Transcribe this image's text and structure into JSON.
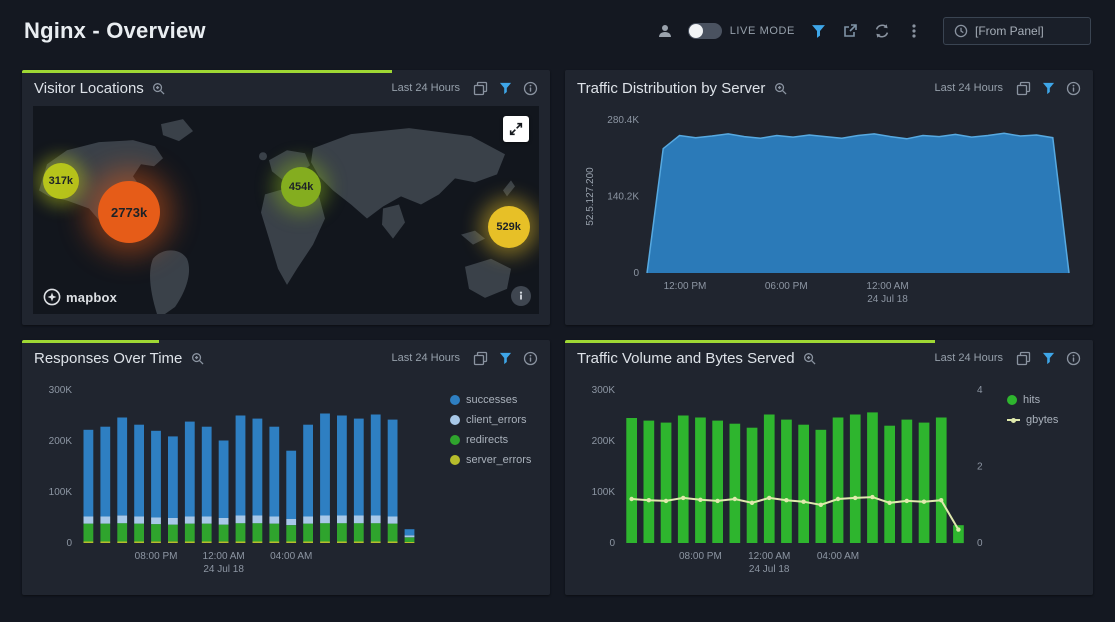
{
  "header": {
    "title": "Nginx - Overview",
    "live_mode": "LIVE MODE",
    "from_panel_value": "[From Panel]"
  },
  "panels": {
    "visitor_locations": {
      "title": "Visitor Locations",
      "time_range": "Last 24 Hours",
      "progress": 70,
      "mapbox_label": "mapbox",
      "bubbles": [
        {
          "label": "317k",
          "color": "#b6c41b",
          "x": 5.5,
          "y": 36,
          "size": 36
        },
        {
          "label": "2773k",
          "color": "#e65c18",
          "x": 19,
          "y": 51,
          "size": 62
        },
        {
          "label": "454k",
          "color": "#84ad1f",
          "x": 53,
          "y": 39,
          "size": 40
        },
        {
          "label": "529k",
          "color": "#e7c027",
          "x": 94,
          "y": 58,
          "size": 42
        }
      ]
    },
    "traffic_distribution": {
      "title": "Traffic Distribution by Server",
      "time_range": "Last 24 Hours",
      "progress": 0
    },
    "responses_over_time": {
      "title": "Responses Over Time",
      "time_range": "Last 24 Hours",
      "progress": 26
    },
    "traffic_volume": {
      "title": "Traffic Volume and Bytes Served",
      "time_range": "Last 24 Hours",
      "progress": 70
    }
  },
  "chart_data": [
    {
      "id": "traffic_distribution",
      "type": "area",
      "title": "Traffic Distribution by Server",
      "ylabel": "52.5.127.200",
      "color": "#2b7ab8",
      "stroke": "#57a9e0",
      "ylim": [
        0,
        280400
      ],
      "y_ticks": [
        {
          "v": 0,
          "label": "0"
        },
        {
          "v": 140200,
          "label": "140.2K"
        },
        {
          "v": 280400,
          "label": "280.4K"
        }
      ],
      "x_ticks": [
        {
          "f": 0.09,
          "label": "12:00 PM"
        },
        {
          "f": 0.33,
          "label": "06:00 PM"
        },
        {
          "f": 0.57,
          "label": "12:00 AM",
          "sub": "24 Jul 18"
        }
      ],
      "values": [
        0,
        228000,
        252000,
        248000,
        251000,
        255000,
        250000,
        247000,
        252000,
        249000,
        253000,
        250000,
        247000,
        252000,
        255000,
        250000,
        246000,
        252000,
        250000,
        254000,
        249000,
        252000,
        256000,
        251000,
        253000,
        248000,
        0
      ]
    },
    {
      "id": "responses_over_time",
      "type": "stacked_bar",
      "title": "Responses Over Time",
      "ylim": [
        0,
        300000
      ],
      "y_ticks": [
        {
          "v": 0,
          "label": "0"
        },
        {
          "v": 100000,
          "label": "100K"
        },
        {
          "v": 200000,
          "label": "200K"
        },
        {
          "v": 300000,
          "label": "300K"
        }
      ],
      "x_ticks": [
        {
          "i": 4,
          "label": "08:00 PM"
        },
        {
          "i": 8,
          "label": "12:00 AM",
          "sub": "24 Jul 18"
        },
        {
          "i": 12,
          "label": "04:00 AM"
        }
      ],
      "stack": [
        {
          "name": "server_errors",
          "color": "#b7bd2c",
          "values": [
            3000,
            3000,
            3000,
            3000,
            3000,
            3000,
            3000,
            3000,
            3000,
            3000,
            3000,
            3000,
            3000,
            3000,
            3000,
            3000,
            3000,
            3000,
            3000,
            2000
          ]
        },
        {
          "name": "redirects",
          "color": "#2fa42d",
          "values": [
            35000,
            35000,
            36000,
            35000,
            34000,
            33000,
            35000,
            35000,
            33000,
            36000,
            36000,
            35000,
            32000,
            35000,
            36000,
            36000,
            36000,
            36000,
            35000,
            9000
          ]
        },
        {
          "name": "client_errors",
          "color": "#a8c8e8",
          "values": [
            14000,
            14000,
            15000,
            14000,
            13000,
            13000,
            14000,
            14000,
            13000,
            15000,
            15000,
            14000,
            12000,
            14000,
            15000,
            15000,
            15000,
            15000,
            14000,
            4000
          ]
        },
        {
          "name": "successes",
          "color": "#2e7fc2",
          "values": [
            170000,
            176000,
            192000,
            180000,
            170000,
            160000,
            186000,
            176000,
            152000,
            196000,
            190000,
            176000,
            134000,
            180000,
            200000,
            196000,
            190000,
            198000,
            190000,
            12000
          ]
        }
      ],
      "legend": [
        {
          "label": "successes",
          "color": "#2e7fc2",
          "marker": "dot"
        },
        {
          "label": "client_errors",
          "color": "#a8c8e8",
          "marker": "dot"
        },
        {
          "label": "redirects",
          "color": "#2fa42d",
          "marker": "dot"
        },
        {
          "label": "server_errors",
          "color": "#b7bd2c",
          "marker": "dot"
        }
      ]
    },
    {
      "id": "traffic_volume",
      "type": "bars_line",
      "title": "Traffic Volume and Bytes Served",
      "ylim": [
        0,
        300000
      ],
      "right_ylim": [
        0,
        4
      ],
      "y_ticks": [
        {
          "v": 0,
          "label": "0"
        },
        {
          "v": 100000,
          "label": "100K"
        },
        {
          "v": 200000,
          "label": "200K"
        },
        {
          "v": 300000,
          "label": "300K"
        }
      ],
      "right_ticks": [
        {
          "v": 0,
          "label": "0"
        },
        {
          "v": 2,
          "label": "2"
        },
        {
          "v": 4,
          "label": "4"
        }
      ],
      "x_ticks": [
        {
          "i": 4,
          "label": "08:00 PM"
        },
        {
          "i": 8,
          "label": "12:00 AM",
          "sub": "24 Jul 18"
        },
        {
          "i": 12,
          "label": "04:00 AM"
        }
      ],
      "bars": {
        "name": "hits",
        "color": "#2eb52e",
        "values": [
          245000,
          240000,
          236000,
          250000,
          246000,
          240000,
          234000,
          226000,
          252000,
          242000,
          232000,
          222000,
          246000,
          252000,
          256000,
          230000,
          242000,
          236000,
          246000,
          35000
        ]
      },
      "line": {
        "name": "gbytes",
        "color": "#dfe9ad",
        "values": [
          1.15,
          1.12,
          1.1,
          1.18,
          1.13,
          1.1,
          1.15,
          1.05,
          1.18,
          1.12,
          1.08,
          1.0,
          1.15,
          1.18,
          1.2,
          1.05,
          1.1,
          1.08,
          1.12,
          0.35
        ]
      },
      "legend": [
        {
          "label": "hits",
          "color": "#2eb52e",
          "marker": "dot"
        },
        {
          "label": "gbytes",
          "color": "#dfe9ad",
          "marker": "line"
        }
      ]
    }
  ]
}
